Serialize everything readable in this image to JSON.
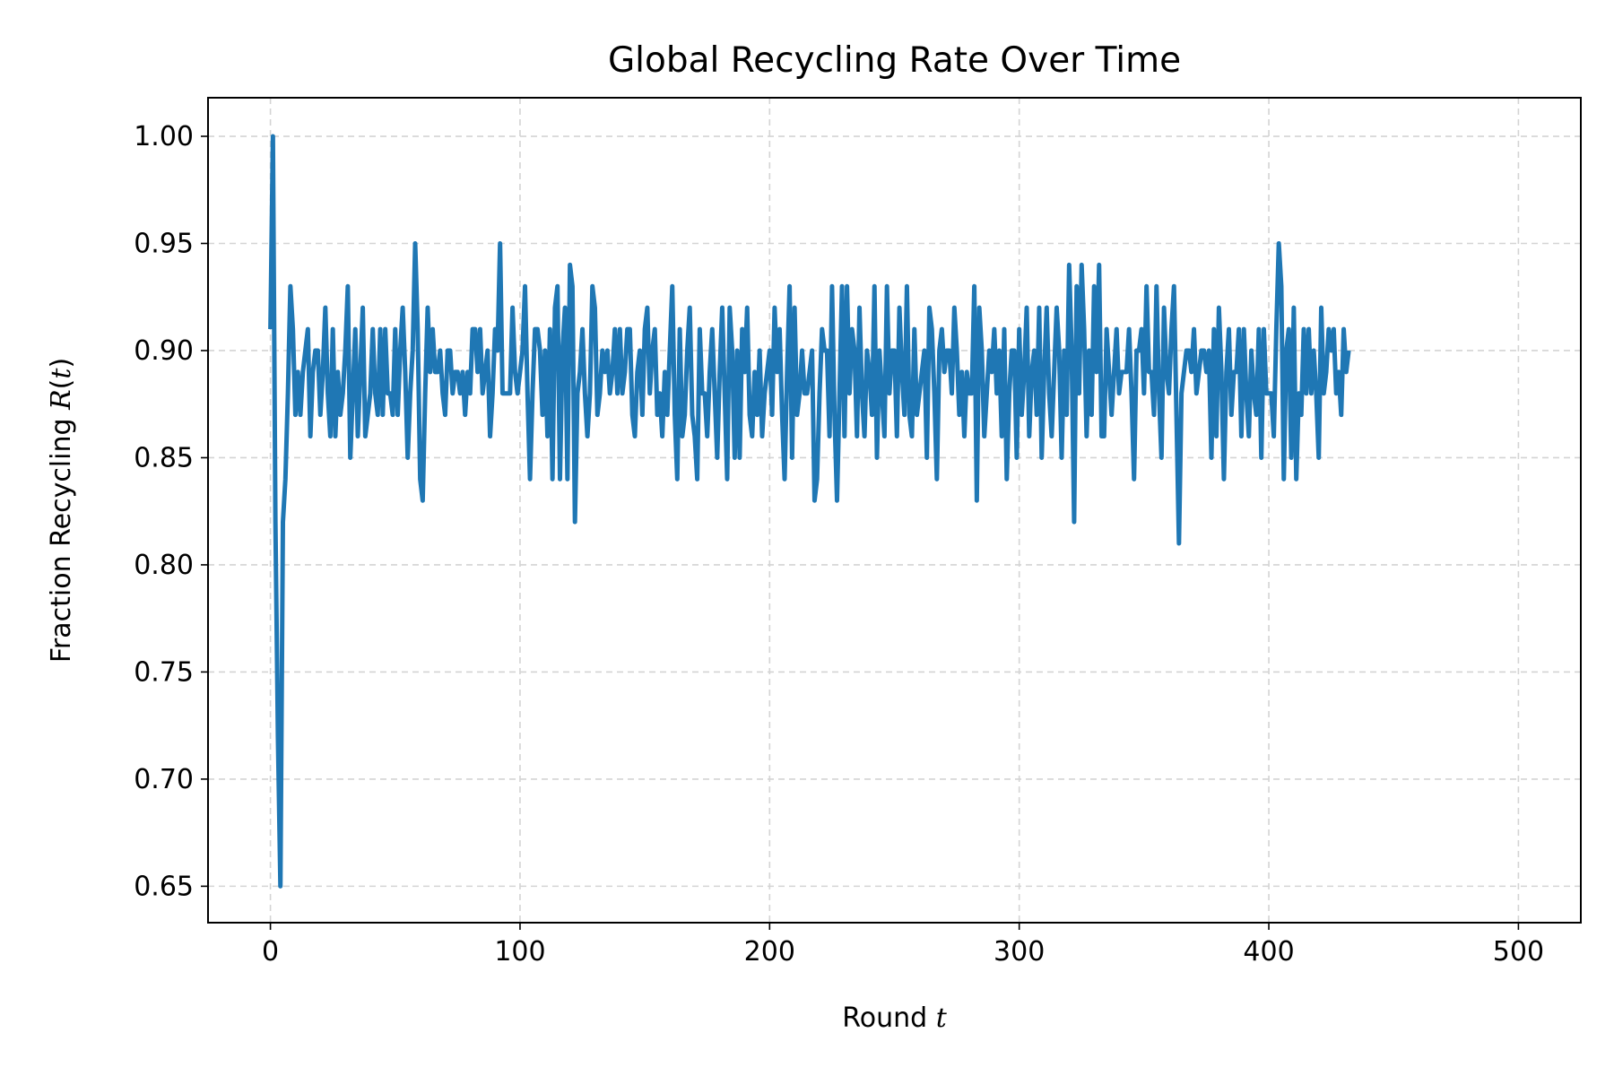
{
  "chart_data": {
    "type": "line",
    "title": "Global Recycling Rate Over Time",
    "xlabel": "Round t",
    "ylabel": "Fraction Recycling R(t)",
    "xlabel_parts": {
      "text": "Round ",
      "var": "t"
    },
    "ylabel_parts": {
      "text": "Fraction Recycling ",
      "var": "R",
      "paren_open": "(",
      "var2": "t",
      "paren_close": ")"
    },
    "xlim": [
      -25,
      525
    ],
    "ylim": [
      0.633,
      1.018
    ],
    "xticks": [
      0,
      100,
      200,
      300,
      400,
      500
    ],
    "xtick_labels": [
      "0",
      "100",
      "200",
      "300",
      "400",
      "500"
    ],
    "yticks": [
      0.65,
      0.7,
      0.75,
      0.8,
      0.85,
      0.9,
      0.95,
      1.0
    ],
    "ytick_labels": [
      "0.65",
      "0.70",
      "0.75",
      "0.80",
      "0.85",
      "0.90",
      "0.95",
      "1.00"
    ],
    "grid": true,
    "line_color": "#1f77b4",
    "series": [
      {
        "x_start": 0,
        "x_step": 1,
        "values": [
          0.91,
          1.0,
          0.82,
          0.72,
          0.65,
          0.82,
          0.84,
          0.88,
          0.93,
          0.91,
          0.87,
          0.89,
          0.87,
          0.89,
          0.9,
          0.91,
          0.86,
          0.89,
          0.9,
          0.9,
          0.87,
          0.89,
          0.92,
          0.88,
          0.86,
          0.91,
          0.86,
          0.89,
          0.87,
          0.88,
          0.9,
          0.93,
          0.85,
          0.88,
          0.91,
          0.86,
          0.89,
          0.92,
          0.86,
          0.87,
          0.88,
          0.91,
          0.88,
          0.87,
          0.91,
          0.87,
          0.91,
          0.88,
          0.88,
          0.87,
          0.91,
          0.87,
          0.9,
          0.92,
          0.89,
          0.85,
          0.88,
          0.9,
          0.95,
          0.91,
          0.84,
          0.83,
          0.88,
          0.92,
          0.89,
          0.91,
          0.89,
          0.89,
          0.9,
          0.88,
          0.87,
          0.9,
          0.9,
          0.88,
          0.89,
          0.89,
          0.88,
          0.89,
          0.87,
          0.89,
          0.88,
          0.91,
          0.91,
          0.89,
          0.91,
          0.88,
          0.89,
          0.9,
          0.86,
          0.88,
          0.91,
          0.9,
          0.95,
          0.88,
          0.88,
          0.88,
          0.88,
          0.92,
          0.89,
          0.88,
          0.89,
          0.9,
          0.93,
          0.88,
          0.84,
          0.88,
          0.91,
          0.91,
          0.9,
          0.87,
          0.9,
          0.86,
          0.91,
          0.84,
          0.92,
          0.93,
          0.84,
          0.9,
          0.92,
          0.84,
          0.94,
          0.93,
          0.82,
          0.88,
          0.89,
          0.91,
          0.88,
          0.86,
          0.88,
          0.93,
          0.92,
          0.87,
          0.88,
          0.9,
          0.89,
          0.9,
          0.88,
          0.89,
          0.91,
          0.88,
          0.91,
          0.88,
          0.89,
          0.91,
          0.91,
          0.87,
          0.86,
          0.89,
          0.9,
          0.87,
          0.91,
          0.92,
          0.88,
          0.9,
          0.91,
          0.87,
          0.88,
          0.86,
          0.89,
          0.87,
          0.9,
          0.93,
          0.87,
          0.84,
          0.91,
          0.86,
          0.87,
          0.9,
          0.92,
          0.87,
          0.86,
          0.84,
          0.91,
          0.88,
          0.88,
          0.86,
          0.89,
          0.91,
          0.88,
          0.85,
          0.89,
          0.92,
          0.88,
          0.84,
          0.92,
          0.9,
          0.85,
          0.9,
          0.85,
          0.91,
          0.89,
          0.92,
          0.87,
          0.86,
          0.89,
          0.87,
          0.9,
          0.86,
          0.88,
          0.89,
          0.9,
          0.87,
          0.92,
          0.89,
          0.91,
          0.87,
          0.84,
          0.89,
          0.93,
          0.85,
          0.92,
          0.87,
          0.88,
          0.9,
          0.88,
          0.88,
          0.89,
          0.9,
          0.83,
          0.84,
          0.88,
          0.91,
          0.9,
          0.9,
          0.86,
          0.93,
          0.87,
          0.83,
          0.88,
          0.93,
          0.86,
          0.93,
          0.88,
          0.91,
          0.9,
          0.86,
          0.92,
          0.88,
          0.86,
          0.9,
          0.89,
          0.87,
          0.93,
          0.85,
          0.9,
          0.88,
          0.86,
          0.93,
          0.88,
          0.9,
          0.9,
          0.86,
          0.92,
          0.89,
          0.87,
          0.93,
          0.87,
          0.86,
          0.91,
          0.87,
          0.88,
          0.89,
          0.9,
          0.85,
          0.92,
          0.91,
          0.88,
          0.84,
          0.9,
          0.91,
          0.89,
          0.9,
          0.9,
          0.88,
          0.92,
          0.9,
          0.87,
          0.89,
          0.86,
          0.89,
          0.88,
          0.88,
          0.93,
          0.83,
          0.92,
          0.9,
          0.86,
          0.88,
          0.9,
          0.89,
          0.91,
          0.88,
          0.9,
          0.86,
          0.91,
          0.84,
          0.88,
          0.9,
          0.9,
          0.85,
          0.91,
          0.87,
          0.89,
          0.92,
          0.86,
          0.89,
          0.9,
          0.87,
          0.92,
          0.85,
          0.89,
          0.92,
          0.88,
          0.86,
          0.89,
          0.92,
          0.9,
          0.85,
          0.9,
          0.87,
          0.94,
          0.9,
          0.82,
          0.93,
          0.88,
          0.94,
          0.91,
          0.86,
          0.9,
          0.87,
          0.93,
          0.89,
          0.94,
          0.86,
          0.86,
          0.91,
          0.89,
          0.87,
          0.89,
          0.91,
          0.88,
          0.89,
          0.89,
          0.89,
          0.91,
          0.88,
          0.84,
          0.9,
          0.9,
          0.91,
          0.88,
          0.93,
          0.89,
          0.89,
          0.87,
          0.93,
          0.88,
          0.85,
          0.92,
          0.89,
          0.88,
          0.91,
          0.93,
          0.87,
          0.81,
          0.88,
          0.89,
          0.9,
          0.9,
          0.89,
          0.91,
          0.88,
          0.89,
          0.9,
          0.9,
          0.89,
          0.9,
          0.85,
          0.91,
          0.86,
          0.92,
          0.89,
          0.84,
          0.89,
          0.91,
          0.87,
          0.89,
          0.89,
          0.91,
          0.86,
          0.91,
          0.88,
          0.86,
          0.9,
          0.88,
          0.87,
          0.91,
          0.85,
          0.91,
          0.88,
          0.88,
          0.88,
          0.86,
          0.91,
          0.95,
          0.93,
          0.84,
          0.9,
          0.91,
          0.85,
          0.92,
          0.84,
          0.88,
          0.87,
          0.91,
          0.88,
          0.91,
          0.88,
          0.9,
          0.88,
          0.85,
          0.92,
          0.88,
          0.89,
          0.91,
          0.9,
          0.91,
          0.88,
          0.89,
          0.87,
          0.91,
          0.89,
          0.9
        ]
      }
    ]
  }
}
